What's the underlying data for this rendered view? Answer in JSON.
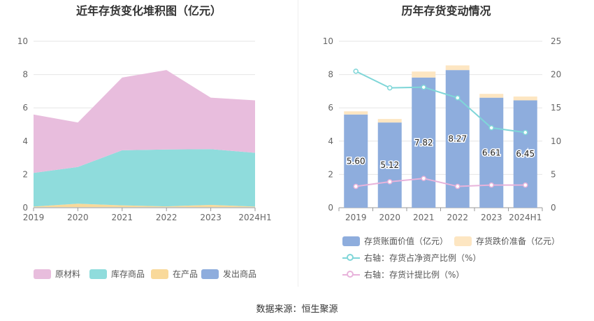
{
  "left_title": "近年存货变化堆积图（亿元）",
  "right_title": "历年存货变动情况",
  "source": "数据来源：恒生聚源",
  "legend_left": [
    {
      "label": "原材料",
      "color": "#e8bddd"
    },
    {
      "label": "库存商品",
      "color": "#8fdcdc"
    },
    {
      "label": "在产品",
      "color": "#f9d99a"
    },
    {
      "label": "发出商品",
      "color": "#8eaddd"
    }
  ],
  "legend_right": [
    {
      "label": "存货账面价值（亿元）",
      "color": "#8eaddd",
      "kind": "bar"
    },
    {
      "label": "存货跌价准备（亿元）",
      "color": "#fde6c2",
      "kind": "bar"
    },
    {
      "label": "右轴：存货占净资产比例（%）",
      "color": "#7fd6d8",
      "kind": "line"
    },
    {
      "label": "右轴：存货计提比例（%）",
      "color": "#e8b3db",
      "kind": "line"
    }
  ],
  "chart_data": [
    {
      "type": "area",
      "title": "近年存货变化堆积图（亿元）",
      "categories": [
        "2019",
        "2020",
        "2021",
        "2022",
        "2023",
        "2024H1"
      ],
      "ylim": [
        0,
        10
      ],
      "yticks": [
        0,
        2,
        4,
        6,
        8,
        10
      ],
      "stacked": true,
      "grid": true,
      "legend_position": "bottom",
      "series": [
        {
          "name": "发出商品",
          "color": "#8eaddd",
          "values": [
            0.02,
            0.02,
            0.02,
            0.02,
            0.02,
            0.02
          ]
        },
        {
          "name": "在产品",
          "color": "#f9d99a",
          "values": [
            0.05,
            0.22,
            0.12,
            0.06,
            0.15,
            0.05
          ]
        },
        {
          "name": "库存商品",
          "color": "#8fdcdc",
          "values": [
            2.02,
            2.21,
            3.31,
            3.42,
            3.35,
            3.23
          ]
        },
        {
          "name": "原材料",
          "color": "#e8bddd",
          "values": [
            3.51,
            2.67,
            4.37,
            4.77,
            3.09,
            3.15
          ]
        }
      ]
    },
    {
      "type": "bar",
      "title": "历年存货变动情况",
      "categories": [
        "2019",
        "2020",
        "2021",
        "2022",
        "2023",
        "2024H1"
      ],
      "ylim": [
        0,
        10
      ],
      "yticks": [
        0,
        2,
        4,
        6,
        8,
        10
      ],
      "y2lim": [
        0,
        25
      ],
      "y2ticks": [
        0,
        5,
        10,
        15,
        20,
        25
      ],
      "stacked": true,
      "grid": true,
      "legend_position": "bottom",
      "series": [
        {
          "name": "存货账面价值（亿元）",
          "color": "#8eaddd",
          "values": [
            5.6,
            5.12,
            7.82,
            8.27,
            6.61,
            6.45
          ],
          "labels": [
            "5.60",
            "5.12",
            "7.82",
            "8.27",
            "6.61",
            "6.45"
          ]
        },
        {
          "name": "存货跌价准备（亿元）",
          "color": "#fde6c2",
          "values": [
            0.19,
            0.21,
            0.36,
            0.28,
            0.23,
            0.23
          ]
        },
        {
          "name": "右轴：存货占净资产比例（%）",
          "type": "line",
          "axis": "right",
          "color": "#7fd6d8",
          "values": [
            20.5,
            18.0,
            18.1,
            16.5,
            12.0,
            11.3
          ]
        },
        {
          "name": "右轴：存货计提比例（%）",
          "type": "line",
          "axis": "right",
          "color": "#e8b3db",
          "values": [
            3.2,
            3.9,
            4.4,
            3.2,
            3.4,
            3.4
          ]
        }
      ]
    }
  ]
}
